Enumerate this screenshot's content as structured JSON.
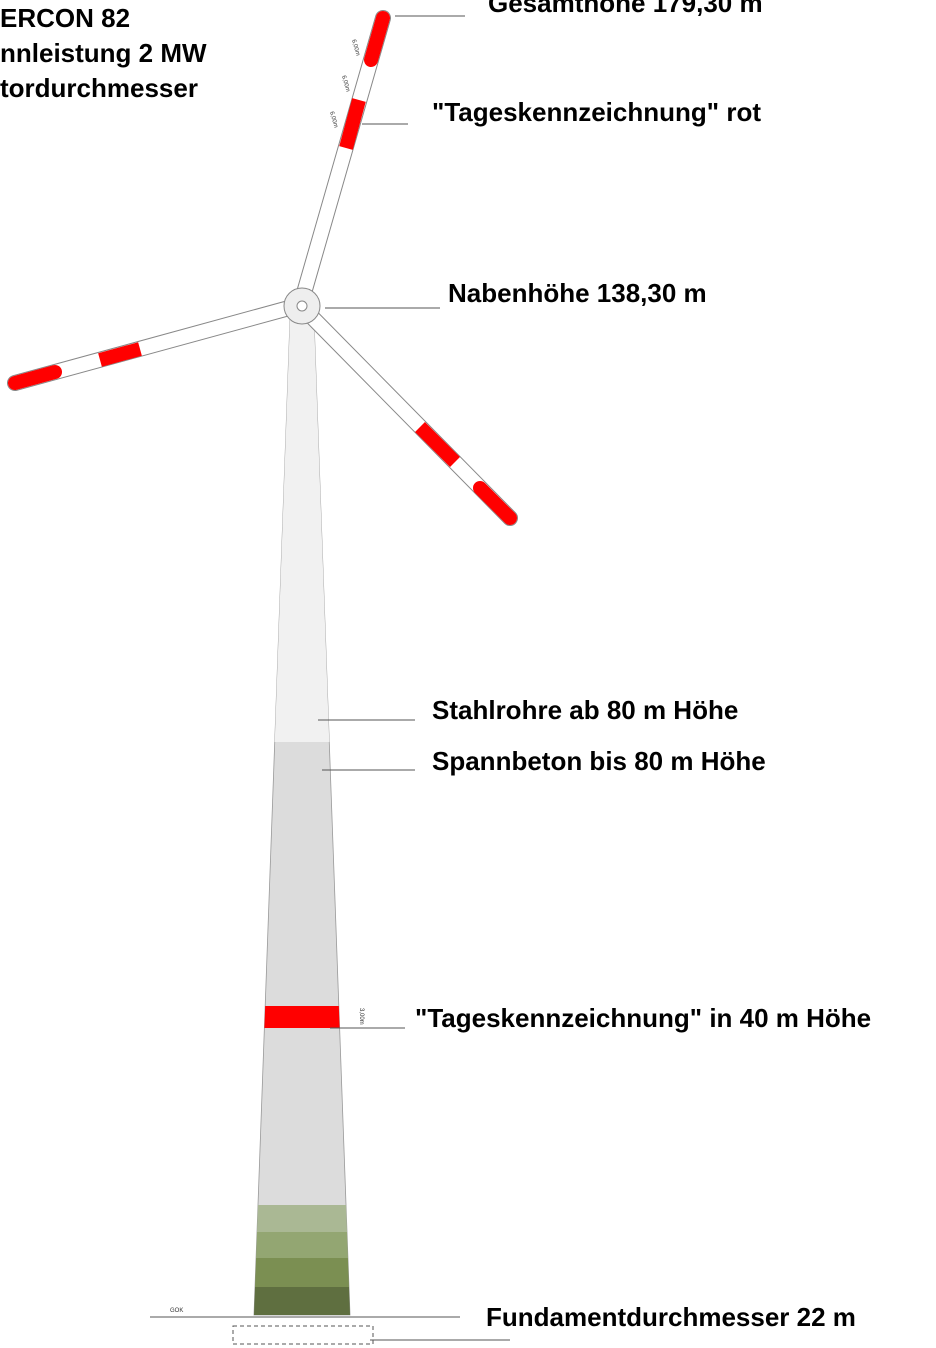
{
  "title_lines": [
    "ERCON 82",
    "nnleistung 2 MW",
    "tordurchmesser"
  ],
  "labels": {
    "total_height": "Gesamthöhe 179,30 m",
    "day_marking_red": "\"Tageskennzeichnung\" rot",
    "hub_height": "Nabenhöhe 138,30 m",
    "steel_tube": "Stahlrohre ab 80 m Höhe",
    "concrete": "Spannbeton bis 80 m Höhe",
    "day_marking_tower": "\"Tageskennzeichnung\" in 40 m Höhe",
    "foundation": "Fundamentdurchmesser 22 m"
  },
  "dimensions": {
    "blade_segment_1": "6,00m",
    "blade_segment_2": "6,00m",
    "blade_segment_3": "6,00m",
    "tower_band": "3,00m",
    "ground": "GOK"
  }
}
